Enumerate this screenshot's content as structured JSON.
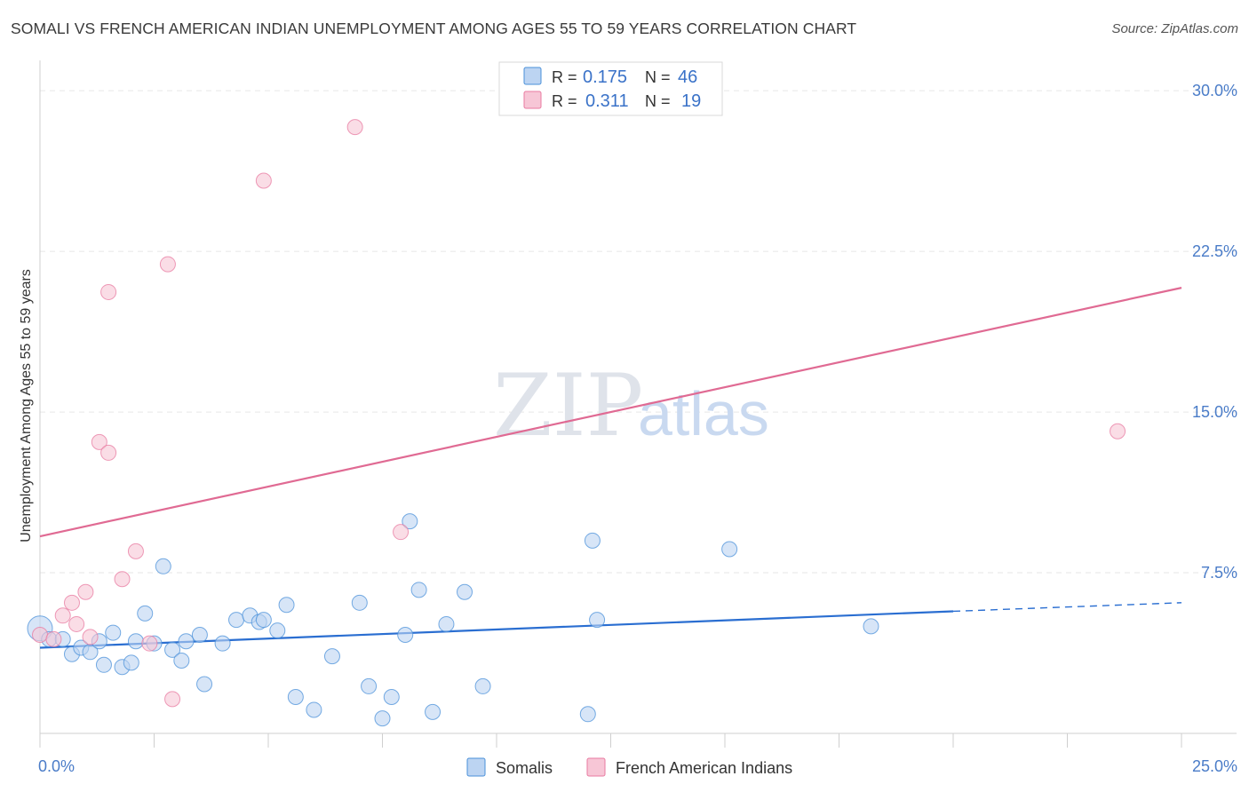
{
  "title": "SOMALI VS FRENCH AMERICAN INDIAN UNEMPLOYMENT AMONG AGES 55 TO 59 YEARS CORRELATION CHART",
  "source": "Source: ZipAtlas.com",
  "watermark": {
    "zip": "ZIP",
    "atlas": "atlas"
  },
  "colors": {
    "somali": "#4a90d9",
    "somali_fill": "#bcd4f2",
    "french": "#e87aa0",
    "french_fill": "#f7c6d6",
    "somali_line": "#2a6ed1",
    "french_line": "#e06a93",
    "tick_text": "#4a7cc8",
    "grid": "#e6e6e6"
  },
  "chart_data": {
    "type": "scatter",
    "title": "SOMALI VS FRENCH AMERICAN INDIAN UNEMPLOYMENT AMONG AGES 55 TO 59 YEARS CORRELATION CHART",
    "xlabel": "",
    "ylabel": "Unemployment Among Ages 55 to 59 years",
    "xlim": [
      0,
      25
    ],
    "ylim": [
      0,
      31
    ],
    "x_tick_labels": [
      "0.0%",
      "25.0%"
    ],
    "y_ticks": [
      7.5,
      15.0,
      22.5,
      30.0
    ],
    "y_tick_labels": [
      "7.5%",
      "15.0%",
      "22.5%",
      "30.0%"
    ],
    "legend": {
      "position": "top-center",
      "entries": [
        {
          "r_label": "R = ",
          "r_value": "0.175",
          "n_label": "N = ",
          "n_value": "46"
        },
        {
          "r_label": "R = ",
          "r_value": "0.311",
          "n_label": "N = ",
          "n_value": "19"
        }
      ]
    },
    "bottom_legend": [
      "Somalis",
      "French American Indians"
    ],
    "series": [
      {
        "name": "Somalis",
        "points": [
          [
            0.0,
            4.9
          ],
          [
            0.2,
            4.4
          ],
          [
            0.5,
            4.4
          ],
          [
            0.7,
            3.7
          ],
          [
            0.9,
            4.0
          ],
          [
            1.1,
            3.8
          ],
          [
            1.3,
            4.3
          ],
          [
            1.4,
            3.2
          ],
          [
            1.6,
            4.7
          ],
          [
            1.8,
            3.1
          ],
          [
            2.0,
            3.3
          ],
          [
            2.1,
            4.3
          ],
          [
            2.3,
            5.6
          ],
          [
            2.5,
            4.2
          ],
          [
            2.7,
            7.8
          ],
          [
            2.9,
            3.9
          ],
          [
            3.1,
            3.4
          ],
          [
            3.2,
            4.3
          ],
          [
            3.5,
            4.6
          ],
          [
            3.6,
            2.3
          ],
          [
            4.0,
            4.2
          ],
          [
            4.3,
            5.3
          ],
          [
            4.6,
            5.5
          ],
          [
            4.8,
            5.2
          ],
          [
            4.9,
            5.3
          ],
          [
            5.2,
            4.8
          ],
          [
            5.4,
            6.0
          ],
          [
            5.6,
            1.7
          ],
          [
            6.0,
            1.1
          ],
          [
            6.4,
            3.6
          ],
          [
            7.0,
            6.1
          ],
          [
            7.2,
            2.2
          ],
          [
            7.5,
            0.7
          ],
          [
            7.7,
            1.7
          ],
          [
            8.0,
            4.6
          ],
          [
            8.1,
            9.9
          ],
          [
            8.3,
            6.7
          ],
          [
            8.6,
            1.0
          ],
          [
            8.9,
            5.1
          ],
          [
            9.3,
            6.6
          ],
          [
            9.7,
            2.2
          ],
          [
            12.0,
            0.9
          ],
          [
            12.1,
            9.0
          ],
          [
            12.2,
            5.3
          ],
          [
            15.1,
            8.6
          ],
          [
            18.2,
            5.0
          ]
        ],
        "trend": {
          "x0": 0.0,
          "y0": 4.0,
          "x1": 20.0,
          "y1": 5.7,
          "dash_x1": 25.0,
          "dash_y1": 6.1
        }
      },
      {
        "name": "French American Indians",
        "points": [
          [
            0.0,
            4.6
          ],
          [
            0.3,
            4.4
          ],
          [
            0.5,
            5.5
          ],
          [
            0.7,
            6.1
          ],
          [
            0.8,
            5.1
          ],
          [
            1.0,
            6.6
          ],
          [
            1.1,
            4.5
          ],
          [
            1.3,
            13.6
          ],
          [
            1.5,
            13.1
          ],
          [
            1.5,
            20.6
          ],
          [
            1.8,
            7.2
          ],
          [
            2.1,
            8.5
          ],
          [
            2.4,
            4.2
          ],
          [
            2.8,
            21.9
          ],
          [
            2.9,
            1.6
          ],
          [
            4.9,
            25.8
          ],
          [
            6.9,
            28.3
          ],
          [
            7.9,
            9.4
          ],
          [
            23.6,
            14.1
          ]
        ],
        "trend": {
          "x0": 0.0,
          "y0": 9.2,
          "x1": 25.0,
          "y1": 20.8
        }
      }
    ]
  }
}
